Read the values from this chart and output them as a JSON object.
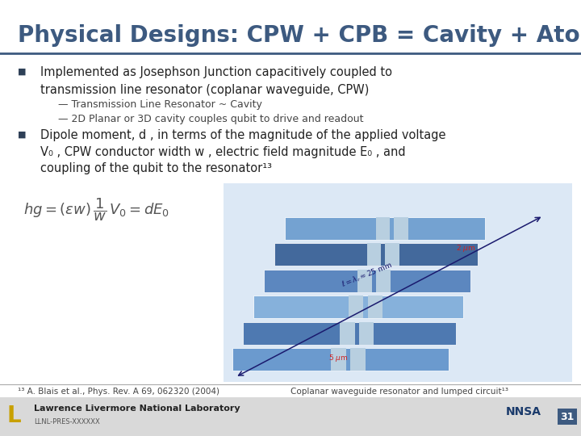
{
  "title": "Physical Designs: CPW + CPB = Cavity + Atom",
  "title_color": "#3d5a80",
  "title_fontsize": 20,
  "bg_color": "#ffffff",
  "header_line_color": "#3d5a80",
  "footer_bg_color": "#d9d9d9",
  "bullet1_text": "Implemented as Josephson Junction capacitively coupled to\ntransmission line resonator (coplanar waveguide, CPW)",
  "sub1a": "— Transmission Line Resonator ~ Cavity",
  "sub1b": "— 2D Planar or 3D cavity couples qubit to drive and readout",
  "bullet2_line1": "Dipole moment, d , in terms of the magnitude of the applied voltage",
  "bullet2_line2": "V₀ , CPW conductor width w , electric field magnitude E₀ , and",
  "bullet2_line3": "coupling of the qubit to the resonator¹³",
  "footnote": "¹³ A. Blais et al., Phys. Rev. A 69, 062320 (2004)",
  "caption": "Coplanar waveguide resonator and lumped circuit¹³",
  "footer_text": "Lawrence Livermore National Laboratory",
  "footer_sub": "LLNL-PRES-XXXXXX",
  "slide_number": "31",
  "bullet_color": "#2e4057",
  "text_color": "#222222",
  "sub_text_color": "#444444",
  "formula_color": "#555555",
  "footnote_color": "#444444",
  "footer_text_color": "#333333",
  "llnl_logo_color": "#c8a000",
  "nnsa_color": "#1a3a6b"
}
